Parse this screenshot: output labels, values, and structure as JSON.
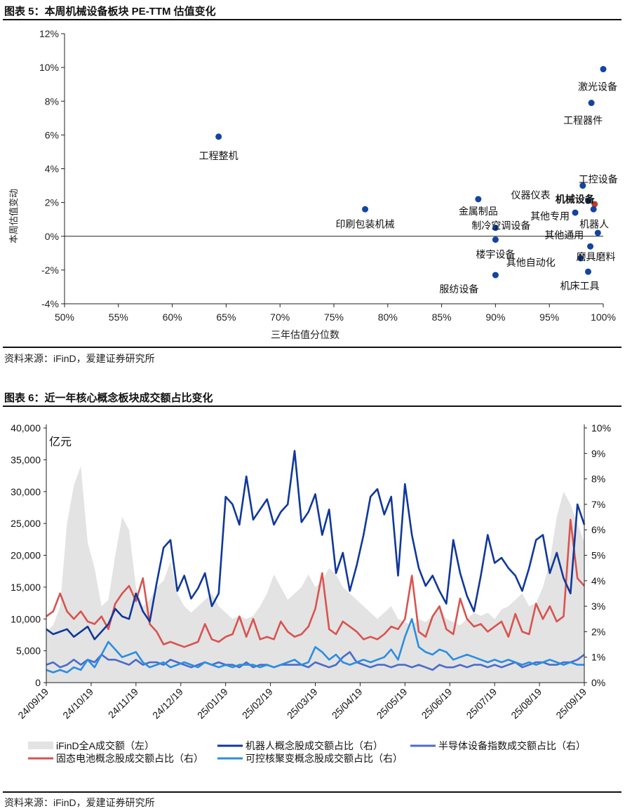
{
  "figure5": {
    "title": "图表 5：本周机械设备板块 PE-TTM 估值变化",
    "source": "资料来源：iFinD，爱建证券研究所",
    "chart_data": {
      "type": "scatter",
      "xlabel": "三年估值分位数",
      "ylabel": "本周估值变动",
      "xlim": [
        50,
        100
      ],
      "ylim": [
        -4,
        12
      ],
      "x_ticks": [
        "50%",
        "55%",
        "60%",
        "65%",
        "70%",
        "75%",
        "80%",
        "85%",
        "90%",
        "95%",
        "100%"
      ],
      "y_ticks": [
        "12%",
        "10%",
        "8%",
        "6%",
        "4%",
        "2%",
        "0%",
        "-2%",
        "-4%"
      ],
      "points": [
        {
          "label": "激光设备",
          "x": 100.0,
          "y": 9.9
        },
        {
          "label": "工程器件",
          "x": 98.9,
          "y": 7.9
        },
        {
          "label": "工程整机",
          "x": 64.3,
          "y": 5.9
        },
        {
          "label": "工控设备",
          "x": 98.1,
          "y": 3.0
        },
        {
          "label": "仪器仪表",
          "x": 98.6,
          "y": 2.1
        },
        {
          "label": "机械设备",
          "x": 99.2,
          "y": 1.9,
          "highlight": true
        },
        {
          "label": "金属制品",
          "x": 88.4,
          "y": 2.2
        },
        {
          "label": "印刷包装机械",
          "x": 77.9,
          "y": 1.6
        },
        {
          "label": "其他专用",
          "x": 97.4,
          "y": 1.4
        },
        {
          "label": "机器人",
          "x": 99.1,
          "y": 1.6
        },
        {
          "label": "制冷空调设备",
          "x": 90.0,
          "y": 0.5
        },
        {
          "label": "其他通用",
          "x": 99.5,
          "y": 0.2
        },
        {
          "label": "楼宇设备",
          "x": 90.0,
          "y": -0.2
        },
        {
          "label": "磨具磨料",
          "x": 98.8,
          "y": -0.6
        },
        {
          "label": "其他自动化",
          "x": 97.9,
          "y": -1.3
        },
        {
          "label": "机床工具",
          "x": 98.6,
          "y": -2.1
        },
        {
          "label": "服纺设备",
          "x": 90.0,
          "y": -2.3
        }
      ]
    }
  },
  "figure6": {
    "title": "图表 6：近一年核心概念板块成交额占比变化",
    "source": "资料来源：iFinD，爱建证券研究所",
    "chart_data": {
      "type": "area+line",
      "unit_label": "亿元",
      "left_axis": {
        "min": 0,
        "max": 40000,
        "ticks": [
          "0",
          "5,000",
          "10,000",
          "15,000",
          "20,000",
          "25,000",
          "30,000",
          "35,000",
          "40,000"
        ]
      },
      "right_axis": {
        "min": 0,
        "max": 10,
        "ticks": [
          "0%",
          "1%",
          "2%",
          "3%",
          "4%",
          "5%",
          "6%",
          "7%",
          "8%",
          "9%",
          "10%"
        ]
      },
      "x_ticks": [
        "24/09/19",
        "24/10/19",
        "24/11/19",
        "24/12/19",
        "25/01/19",
        "25/02/19",
        "25/03/19",
        "25/04/19",
        "25/05/19",
        "25/06/19",
        "25/07/19",
        "25/08/19",
        "25/09/19"
      ],
      "series": [
        {
          "name": "iFinD全A成交额（左）",
          "axis": "left",
          "kind": "area",
          "color": "#e3e3e3",
          "values": [
            8000,
            9000,
            12000,
            25000,
            31000,
            34000,
            22000,
            18000,
            12000,
            13000,
            20000,
            26000,
            24000,
            15000,
            12000,
            13000,
            15000,
            16000,
            19000,
            14000,
            12000,
            11000,
            12000,
            13000,
            14000,
            12000,
            11000,
            10000,
            10500,
            10000,
            10500,
            12000,
            14000,
            17000,
            15000,
            13000,
            14000,
            15000,
            17000,
            15000,
            16000,
            18000,
            17000,
            15000,
            14000,
            13000,
            12000,
            11000,
            10000,
            11000,
            12000,
            10000,
            9500,
            9000,
            10000,
            9500,
            10500,
            12000,
            10000,
            9500,
            9000,
            10000,
            11000,
            10500,
            11000,
            10000,
            11500,
            12000,
            13000,
            14000,
            12000,
            12500,
            15000,
            19000,
            26000,
            30000,
            28000,
            25000,
            22000
          ]
        },
        {
          "name": "机器人概念股成交额占比（右）",
          "axis": "right",
          "kind": "line",
          "color": "#10389a",
          "values": [
            2.1,
            1.9,
            2.0,
            2.1,
            1.8,
            2.0,
            2.2,
            1.7,
            2.0,
            2.3,
            2.9,
            2.6,
            2.5,
            3.5,
            2.8,
            2.4,
            3.9,
            5.3,
            5.6,
            3.6,
            4.2,
            3.3,
            3.7,
            4.3,
            3.0,
            3.5,
            7.3,
            7.0,
            6.2,
            8.1,
            6.4,
            6.8,
            7.2,
            6.2,
            6.7,
            7.0,
            9.1,
            6.3,
            6.7,
            7.4,
            5.8,
            6.8,
            4.3,
            5.1,
            3.6,
            4.6,
            5.8,
            7.3,
            7.6,
            6.6,
            7.3,
            4.2,
            7.8,
            5.8,
            4.5,
            3.8,
            4.2,
            3.6,
            3.1,
            5.6,
            4.3,
            3.4,
            2.8,
            4.2,
            5.8,
            4.7,
            4.9,
            4.5,
            4.2,
            3.6,
            4.5,
            5.6,
            5.8,
            4.3,
            5.1,
            4.1,
            3.5,
            7.0,
            6.2
          ]
        },
        {
          "name": "半导体设备指数成交额占比（右）",
          "axis": "right",
          "kind": "line",
          "color": "#4a6cc8",
          "values": [
            0.7,
            0.8,
            0.6,
            0.7,
            0.9,
            0.7,
            0.9,
            0.8,
            1.1,
            0.9,
            0.9,
            0.8,
            0.7,
            0.9,
            0.7,
            0.8,
            0.8,
            0.7,
            0.9,
            0.8,
            0.7,
            0.6,
            0.7,
            0.8,
            0.7,
            0.8,
            0.7,
            0.7,
            0.6,
            0.8,
            0.6,
            0.7,
            0.7,
            0.6,
            0.7,
            0.7,
            0.7,
            0.7,
            0.6,
            0.8,
            0.7,
            0.6,
            0.7,
            1.0,
            1.2,
            0.8,
            0.7,
            0.6,
            0.7,
            0.7,
            0.6,
            0.7,
            0.7,
            0.6,
            0.7,
            0.6,
            0.5,
            0.7,
            0.6,
            0.6,
            0.7,
            0.6,
            0.7,
            0.7,
            0.6,
            0.7,
            0.6,
            0.7,
            0.8,
            0.6,
            0.7,
            0.8,
            0.8,
            0.7,
            0.7,
            0.8,
            0.8,
            0.9,
            1.1
          ]
        },
        {
          "name": "固态电池概念股成交额占比（右）",
          "axis": "right",
          "kind": "line",
          "color": "#d9534f",
          "values": [
            2.6,
            2.8,
            3.5,
            2.8,
            2.5,
            2.8,
            2.4,
            2.3,
            2.6,
            2.1,
            3.1,
            3.5,
            3.8,
            3.2,
            4.1,
            2.3,
            2.0,
            1.5,
            1.6,
            1.5,
            1.4,
            1.5,
            1.6,
            2.3,
            1.7,
            1.6,
            1.8,
            1.9,
            2.6,
            1.8,
            2.5,
            1.7,
            1.8,
            1.7,
            2.4,
            2.0,
            1.8,
            1.9,
            2.2,
            2.9,
            4.3,
            2.1,
            1.9,
            2.4,
            2.2,
            2.0,
            1.7,
            1.8,
            1.7,
            1.9,
            2.2,
            2.1,
            2.5,
            4.2,
            2.0,
            1.8,
            2.6,
            3.0,
            2.1,
            1.9,
            3.3,
            2.5,
            2.2,
            2.3,
            2.0,
            2.2,
            2.4,
            1.8,
            2.7,
            2.0,
            1.9,
            3.1,
            2.5,
            3.0,
            2.4,
            2.6,
            6.4,
            4.1,
            3.8
          ]
        },
        {
          "name": "可控核聚变概念股成交额占比（右）",
          "axis": "right",
          "kind": "line",
          "color": "#2a8ee0",
          "values": [
            0.5,
            0.4,
            0.5,
            0.4,
            0.6,
            0.5,
            0.9,
            0.6,
            1.1,
            1.6,
            1.3,
            1.0,
            1.1,
            1.2,
            0.8,
            0.6,
            0.7,
            0.8,
            0.6,
            0.7,
            0.8,
            0.7,
            0.6,
            0.8,
            0.7,
            0.6,
            0.7,
            0.6,
            0.7,
            0.7,
            0.7,
            0.6,
            0.7,
            0.6,
            0.7,
            0.8,
            0.9,
            0.7,
            0.8,
            1.4,
            1.2,
            0.9,
            1.1,
            0.8,
            0.7,
            0.8,
            0.9,
            0.8,
            0.9,
            1.0,
            1.3,
            0.9,
            1.8,
            2.5,
            1.4,
            1.2,
            1.1,
            1.3,
            1.2,
            0.9,
            1.0,
            1.1,
            1.0,
            0.9,
            0.8,
            0.9,
            0.8,
            0.9,
            0.8,
            0.7,
            0.8,
            0.7,
            0.8,
            0.9,
            0.8,
            0.7,
            0.8,
            0.7,
            0.7
          ]
        }
      ]
    }
  }
}
